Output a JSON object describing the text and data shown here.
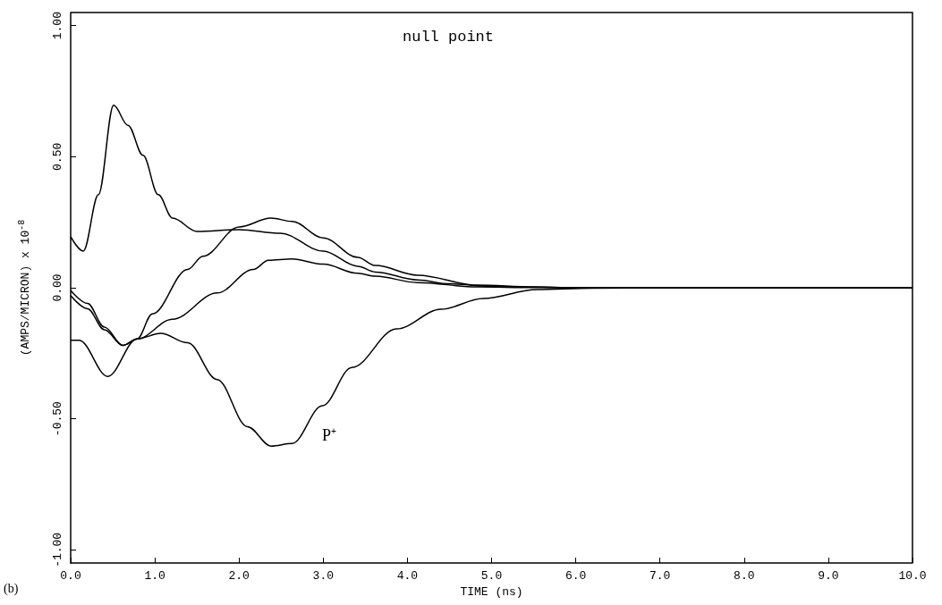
{
  "chart_data": {
    "type": "line",
    "title": "null point",
    "xlabel": "TIME (ns)",
    "ylabel": "(AMPS/MICRON) x 10$^{-8}$",
    "xlim": [
      0,
      10
    ],
    "ylim": [
      -1.05,
      1.05
    ],
    "xticks": [
      {
        "value": 0,
        "label": "0.0"
      },
      {
        "value": 1,
        "label": "1.0"
      },
      {
        "value": 2,
        "label": "2.0"
      },
      {
        "value": 3,
        "label": "3.0"
      },
      {
        "value": 4,
        "label": "4.0"
      },
      {
        "value": 5,
        "label": "5.0"
      },
      {
        "value": 6,
        "label": "6.0"
      },
      {
        "value": 7,
        "label": "7.0"
      },
      {
        "value": 8,
        "label": "8.0"
      },
      {
        "value": 9,
        "label": "9.0"
      },
      {
        "value": 10,
        "label": "10.0"
      }
    ],
    "yticks": [
      {
        "value": -1,
        "label": "-1.00"
      },
      {
        "value": -0.5,
        "label": "-0.50"
      },
      {
        "value": 0,
        "label": "0.00"
      },
      {
        "value": 0.5,
        "label": "0.50"
      },
      {
        "value": 1,
        "label": "1.00"
      }
    ],
    "grid": false,
    "legend": false,
    "marker": "none",
    "line_style": "solid",
    "annotations": [
      "P$^{+}$",
      "(b)"
    ],
    "series": [
      {
        "color": "#000000",
        "x": [
          0,
          0.15,
          0.33,
          0.51,
          0.68,
          0.86,
          1.04,
          1.21,
          1.5,
          2.0,
          2.49,
          3.0,
          3.41,
          3.62,
          4.12,
          4.5,
          5.0,
          6.0,
          7.0,
          8.0,
          9.0,
          10.0
        ],
        "values": [
          0.195,
          0.14,
          0.355,
          0.696,
          0.62,
          0.505,
          0.355,
          0.266,
          0.215,
          0.222,
          0.208,
          0.14,
          0.082,
          0.06,
          0.03,
          0.015,
          0.005,
          0,
          0,
          0,
          0,
          0
        ]
      },
      {
        "color": "#000000",
        "x": [
          0,
          0.2,
          0.4,
          0.62,
          0.79,
          0.97,
          1.39,
          1.57,
          2.0,
          2.38,
          2.63,
          3.0,
          3.41,
          3.62,
          4.12,
          4.83,
          5.5,
          6.0,
          7.0,
          8.0,
          9.0,
          10.0
        ],
        "values": [
          -0.01,
          -0.06,
          -0.15,
          -0.22,
          -0.195,
          -0.1,
          0.07,
          0.12,
          0.232,
          0.266,
          0.253,
          0.19,
          0.116,
          0.085,
          0.048,
          0.01,
          0.003,
          0,
          0,
          0,
          0,
          0
        ]
      },
      {
        "color": "#000000",
        "x": [
          0,
          0.2,
          0.4,
          0.62,
          0.79,
          1.21,
          1.74,
          2.17,
          2.35,
          2.63,
          3.0,
          3.41,
          3.62,
          4.12,
          4.83,
          5.5,
          6.0,
          7.0,
          8.0,
          9.0,
          10.0
        ],
        "values": [
          -0.03,
          -0.08,
          -0.16,
          -0.22,
          -0.195,
          -0.12,
          -0.02,
          0.07,
          0.105,
          0.11,
          0.09,
          0.055,
          0.044,
          0.02,
          0.003,
          0.001,
          0,
          0,
          0,
          0,
          0
        ]
      },
      {
        "color": "#000000",
        "x": [
          0,
          0.1,
          0.44,
          0.79,
          1.07,
          1.39,
          1.74,
          2.1,
          2.38,
          2.63,
          2.99,
          3.34,
          3.87,
          4.4,
          4.9,
          5.54,
          6.2,
          7.0,
          8.0,
          9.0,
          10.0
        ],
        "values": [
          -0.2,
          -0.2,
          -0.338,
          -0.195,
          -0.174,
          -0.21,
          -0.35,
          -0.53,
          -0.604,
          -0.594,
          -0.45,
          -0.304,
          -0.157,
          -0.082,
          -0.041,
          -0.007,
          -0.002,
          0,
          0,
          0,
          0
        ]
      }
    ]
  }
}
